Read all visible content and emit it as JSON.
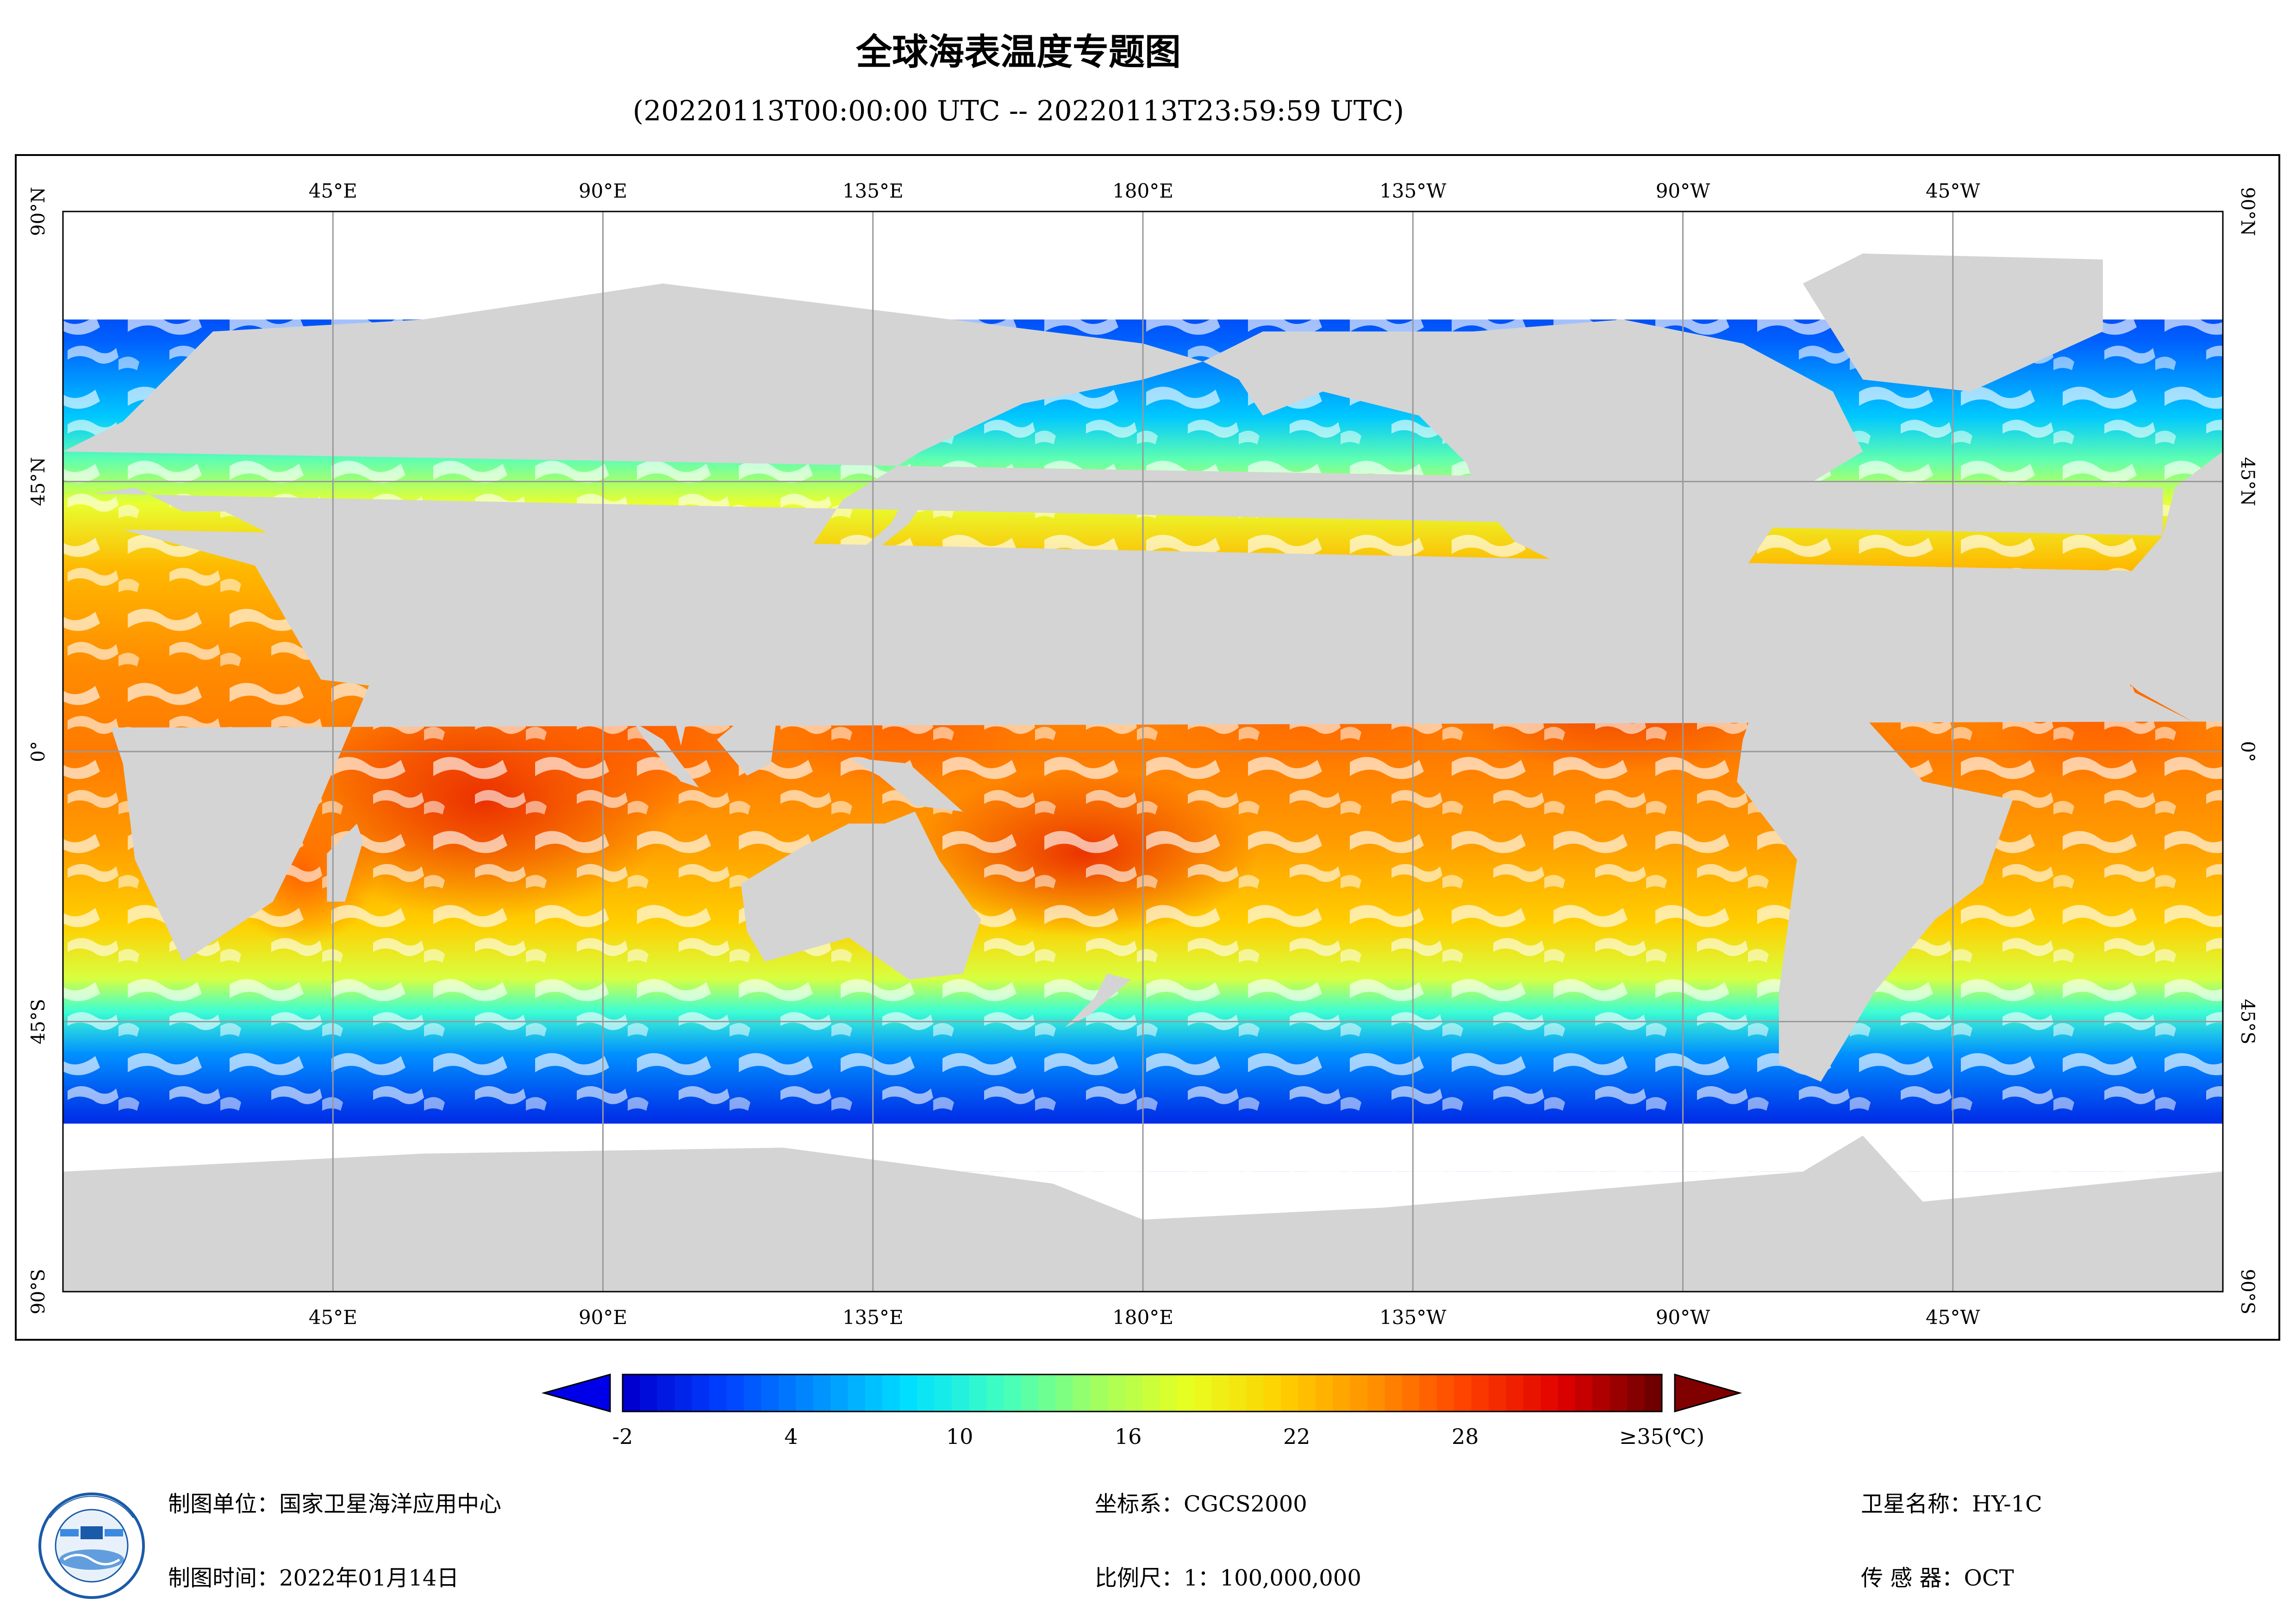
{
  "title": "全球海表温度专题图",
  "subtitle": "(20220113T00:00:00 UTC -- 20220113T23:59:59 UTC)",
  "map": {
    "lon_labels": [
      "45°E",
      "90°E",
      "135°E",
      "180°E",
      "135°W",
      "90°W",
      "45°W"
    ],
    "lat_labels": [
      "90°N",
      "45°N",
      "0°",
      "45°S",
      "90°S"
    ],
    "colors": {
      "land": "#d4d4d4",
      "cloud_mask": "#ffffff",
      "grid": "#9a9a9a"
    }
  },
  "legend": {
    "tick_labels": [
      "-2",
      "4",
      "10",
      "16",
      "22",
      "28",
      "≥35(℃)"
    ],
    "range": [
      -2,
      35
    ],
    "colors": [
      "#0000d0",
      "#0040ff",
      "#0090ff",
      "#00e0ff",
      "#40ffc0",
      "#a0ff60",
      "#e8ff20",
      "#ffd000",
      "#ff9000",
      "#ff4000",
      "#e00000",
      "#700000"
    ]
  },
  "footer": {
    "unit": "制图单位：国家卫星海洋应用中心",
    "time": "制图时间：2022年01月14日",
    "crs": "坐标系：CGCS2000",
    "scale": "比例尺：1：100,000,000",
    "satellite": "卫星名称：HY-1C",
    "sensor": "传  感  器：OCT"
  }
}
